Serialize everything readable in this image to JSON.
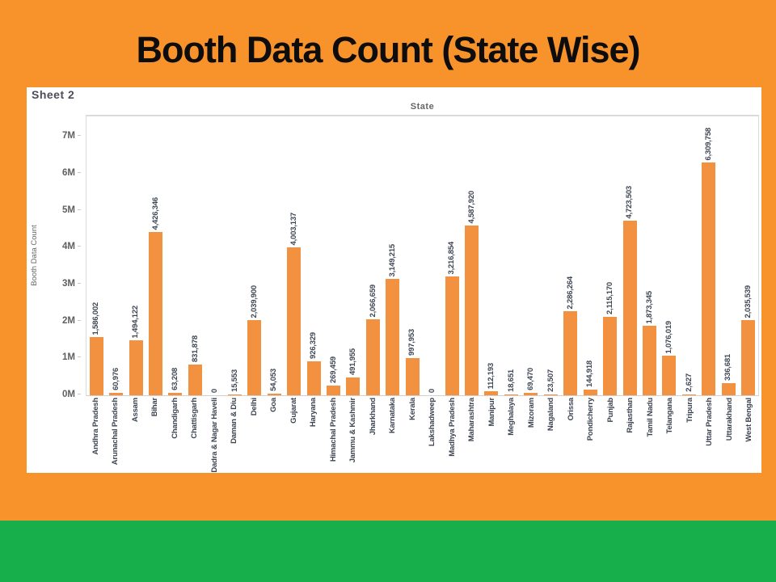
{
  "slide": {
    "title": "Booth Data Count (State Wise)",
    "background_color": "#F8932B",
    "footer_band_color": "#17AF4C"
  },
  "chart": {
    "sheet_label": "Sheet 2",
    "x_axis_title": "State",
    "y_axis_title": "Booth Data Count",
    "bar_color": "#F2913F",
    "label_color": "#3D4552"
  },
  "chart_data": {
    "type": "bar",
    "title": "Booth Data Count (State Wise)",
    "xlabel": "State",
    "ylabel": "Booth Data Count",
    "categories": [
      "Andhra Pradesh",
      "Arunachal Pradesh",
      "Assam",
      "Bihar",
      "Chandigarh",
      "Chattisgarh",
      "Dadra & Nagar Haveli",
      "Daman & Diu",
      "Delhi",
      "Goa",
      "Gujarat",
      "Haryana",
      "Himachal Pradesh",
      "Jammu & Kashmir",
      "Jharkhand",
      "Karnataka",
      "Kerala",
      "Lakshadweep",
      "Madhya Pradesh",
      "Maharashtra",
      "Manipur",
      "Meghalaya",
      "Mizoram",
      "Nagaland",
      "Orissa",
      "Pondicherry",
      "Punjab",
      "Rajasthan",
      "Tamil Nadu",
      "Telangana",
      "Tripura",
      "Uttar Pradesh",
      "Uttarakhand",
      "West Bengal"
    ],
    "values": [
      1586002,
      60976,
      1494122,
      4426346,
      63208,
      831878,
      0,
      15553,
      2039900,
      54053,
      4003137,
      926329,
      269459,
      491955,
      2066659,
      3149215,
      997953,
      0,
      3216854,
      4587920,
      112193,
      18651,
      69470,
      23507,
      2286264,
      144918,
      2115170,
      4723503,
      1873345,
      1076019,
      2627,
      6309758,
      336681,
      2035539
    ],
    "value_labels": [
      "1,586,002",
      "60,976",
      "1,494,122",
      "4,426,346",
      "63,208",
      "831,878",
      "0",
      "15,553",
      "2,039,900",
      "54,053",
      "4,003,137",
      "926,329",
      "269,459",
      "491,955",
      "2,066,659",
      "3,149,215",
      "997,953",
      "0",
      "3,216,854",
      "4,587,920",
      "112,193",
      "18,651",
      "69,470",
      "23,507",
      "2,286,264",
      "144,918",
      "2,115,170",
      "4,723,503",
      "1,873,345",
      "1,076,019",
      "2,627",
      "6,309,758",
      "336,681",
      "2,035,539"
    ],
    "yticks": [
      "0M",
      "1M",
      "2M",
      "3M",
      "4M",
      "5M",
      "6M",
      "7M"
    ],
    "ylim": [
      0,
      7000000
    ],
    "grid": false,
    "legend": false
  }
}
